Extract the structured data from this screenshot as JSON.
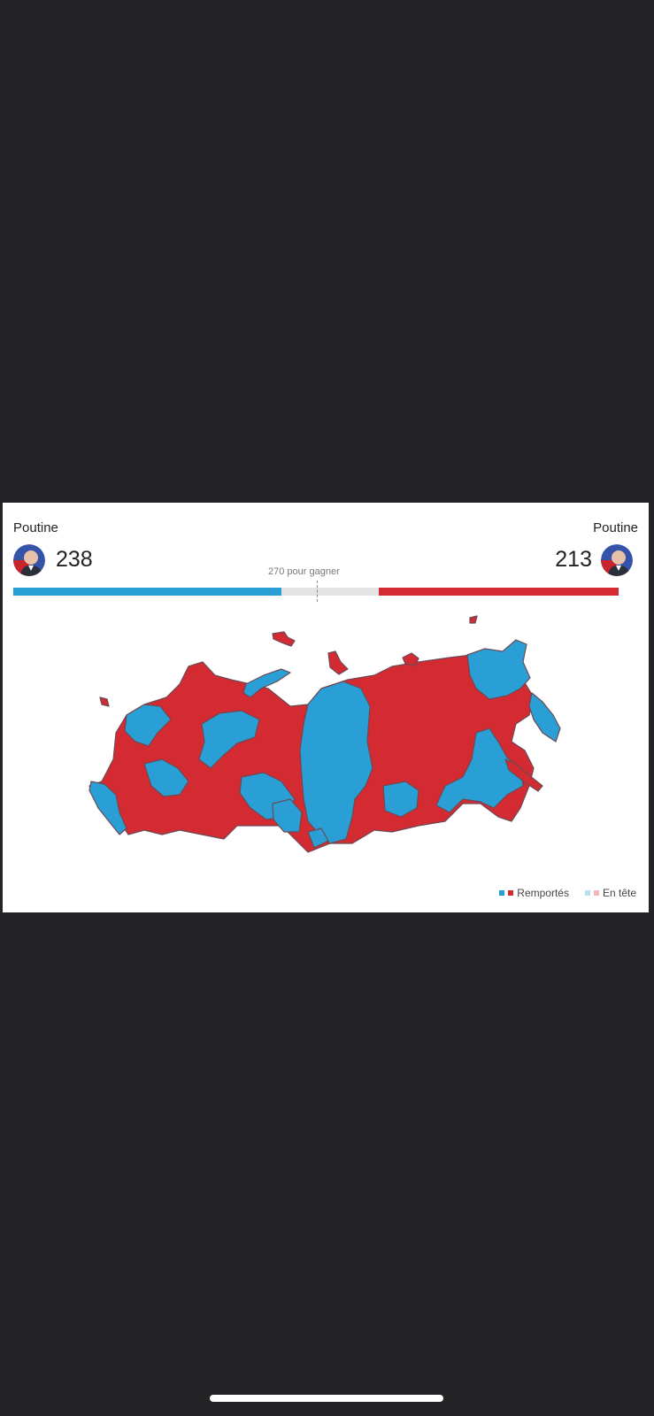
{
  "header": {
    "left": {
      "name": "Poutine",
      "score": "238"
    },
    "right": {
      "name": "Poutine",
      "score": "213"
    },
    "goal_label": "270 pour gagner"
  },
  "progress": {
    "total": 538,
    "left_value": 238,
    "right_value": 213,
    "goal": 270
  },
  "colors": {
    "blue_won": "#2a9fd6",
    "red_won": "#d42a32",
    "blue_leading": "#b9dff2",
    "red_leading": "#f2b6ba",
    "background": "#242426"
  },
  "legend": {
    "won_label": "Remportés",
    "leading_label": "En tête"
  },
  "icons": {
    "avatar": "candidate-portrait-icon"
  }
}
